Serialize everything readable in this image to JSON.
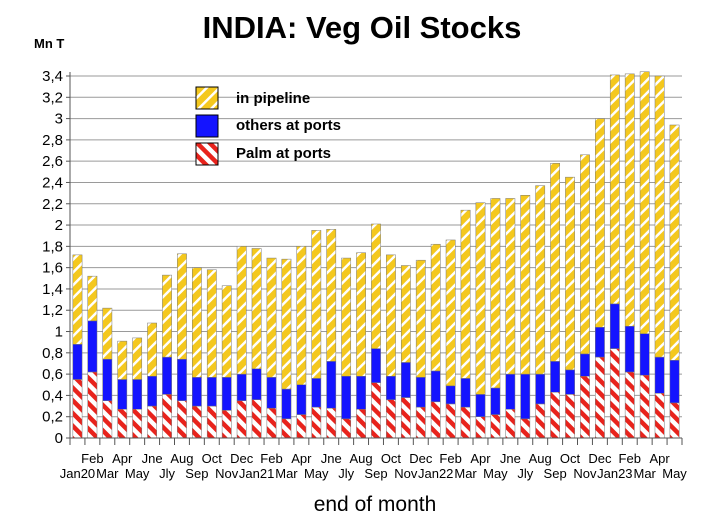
{
  "chart_data": {
    "type": "bar",
    "stacked": true,
    "title": "INDIA: Veg Oil Stocks",
    "ylabel": "Mn T",
    "xlabel": "end of month",
    "ylim": [
      0,
      3.4
    ],
    "yticks": [
      "0",
      "0,2",
      "0,4",
      "0,6",
      "0,8",
      "1",
      "1,2",
      "1,4",
      "1,6",
      "1,8",
      "2",
      "2,2",
      "2,4",
      "2,6",
      "2,8",
      "3",
      "3,2",
      "3,4"
    ],
    "categories": [
      "Jan20",
      "Feb",
      "Mar",
      "Apr",
      "May",
      "Jne",
      "Jly",
      "Aug",
      "Sep",
      "Oct",
      "Nov",
      "Dec",
      "Jan21",
      "Feb",
      "Mar",
      "Apr",
      "May",
      "Jne",
      "Jly",
      "Aug",
      "Sep",
      "Oct",
      "Nov",
      "Dec",
      "Jan22",
      "Feb",
      "Mar",
      "Apr",
      "May",
      "Jne",
      "Jly",
      "Aug",
      "Sep",
      "Oct",
      "Nov",
      "Dec",
      "Jan23",
      "Feb",
      "Mar",
      "Apr",
      "May"
    ],
    "series": [
      {
        "name": "Palm at ports",
        "pattern": "red-white-diagonal",
        "values": [
          0.55,
          0.62,
          0.35,
          0.27,
          0.27,
          0.3,
          0.41,
          0.35,
          0.3,
          0.3,
          0.26,
          0.35,
          0.36,
          0.28,
          0.18,
          0.22,
          0.29,
          0.28,
          0.18,
          0.27,
          0.52,
          0.36,
          0.38,
          0.29,
          0.34,
          0.32,
          0.29,
          0.2,
          0.22,
          0.27,
          0.18,
          0.32,
          0.43,
          0.41,
          0.58,
          0.76,
          0.84,
          0.62,
          0.59,
          0.42,
          0.33
        ]
      },
      {
        "name": "others at ports",
        "pattern": "blue",
        "values": [
          0.33,
          0.48,
          0.39,
          0.28,
          0.28,
          0.28,
          0.35,
          0.39,
          0.27,
          0.27,
          0.31,
          0.25,
          0.29,
          0.29,
          0.28,
          0.28,
          0.27,
          0.44,
          0.4,
          0.31,
          0.32,
          0.22,
          0.33,
          0.28,
          0.29,
          0.17,
          0.27,
          0.21,
          0.25,
          0.33,
          0.42,
          0.28,
          0.29,
          0.23,
          0.21,
          0.28,
          0.42,
          0.43,
          0.39,
          0.34,
          0.4
        ]
      },
      {
        "name": "in pipeline",
        "pattern": "yellow-white-diagonal",
        "values": [
          0.84,
          0.42,
          0.48,
          0.36,
          0.39,
          0.5,
          0.77,
          0.99,
          1.03,
          1.01,
          0.86,
          1.2,
          1.13,
          1.12,
          1.22,
          1.3,
          1.39,
          1.24,
          1.11,
          1.16,
          1.17,
          1.14,
          0.91,
          1.1,
          1.19,
          1.37,
          1.58,
          1.8,
          1.78,
          1.65,
          1.68,
          1.77,
          1.86,
          1.81,
          1.87,
          1.96,
          2.15,
          2.37,
          2.46,
          2.64,
          2.21
        ]
      }
    ],
    "legend": {
      "position": "top-left",
      "order": [
        "in pipeline",
        "others at ports",
        "Palm at ports"
      ]
    },
    "grid": true
  }
}
